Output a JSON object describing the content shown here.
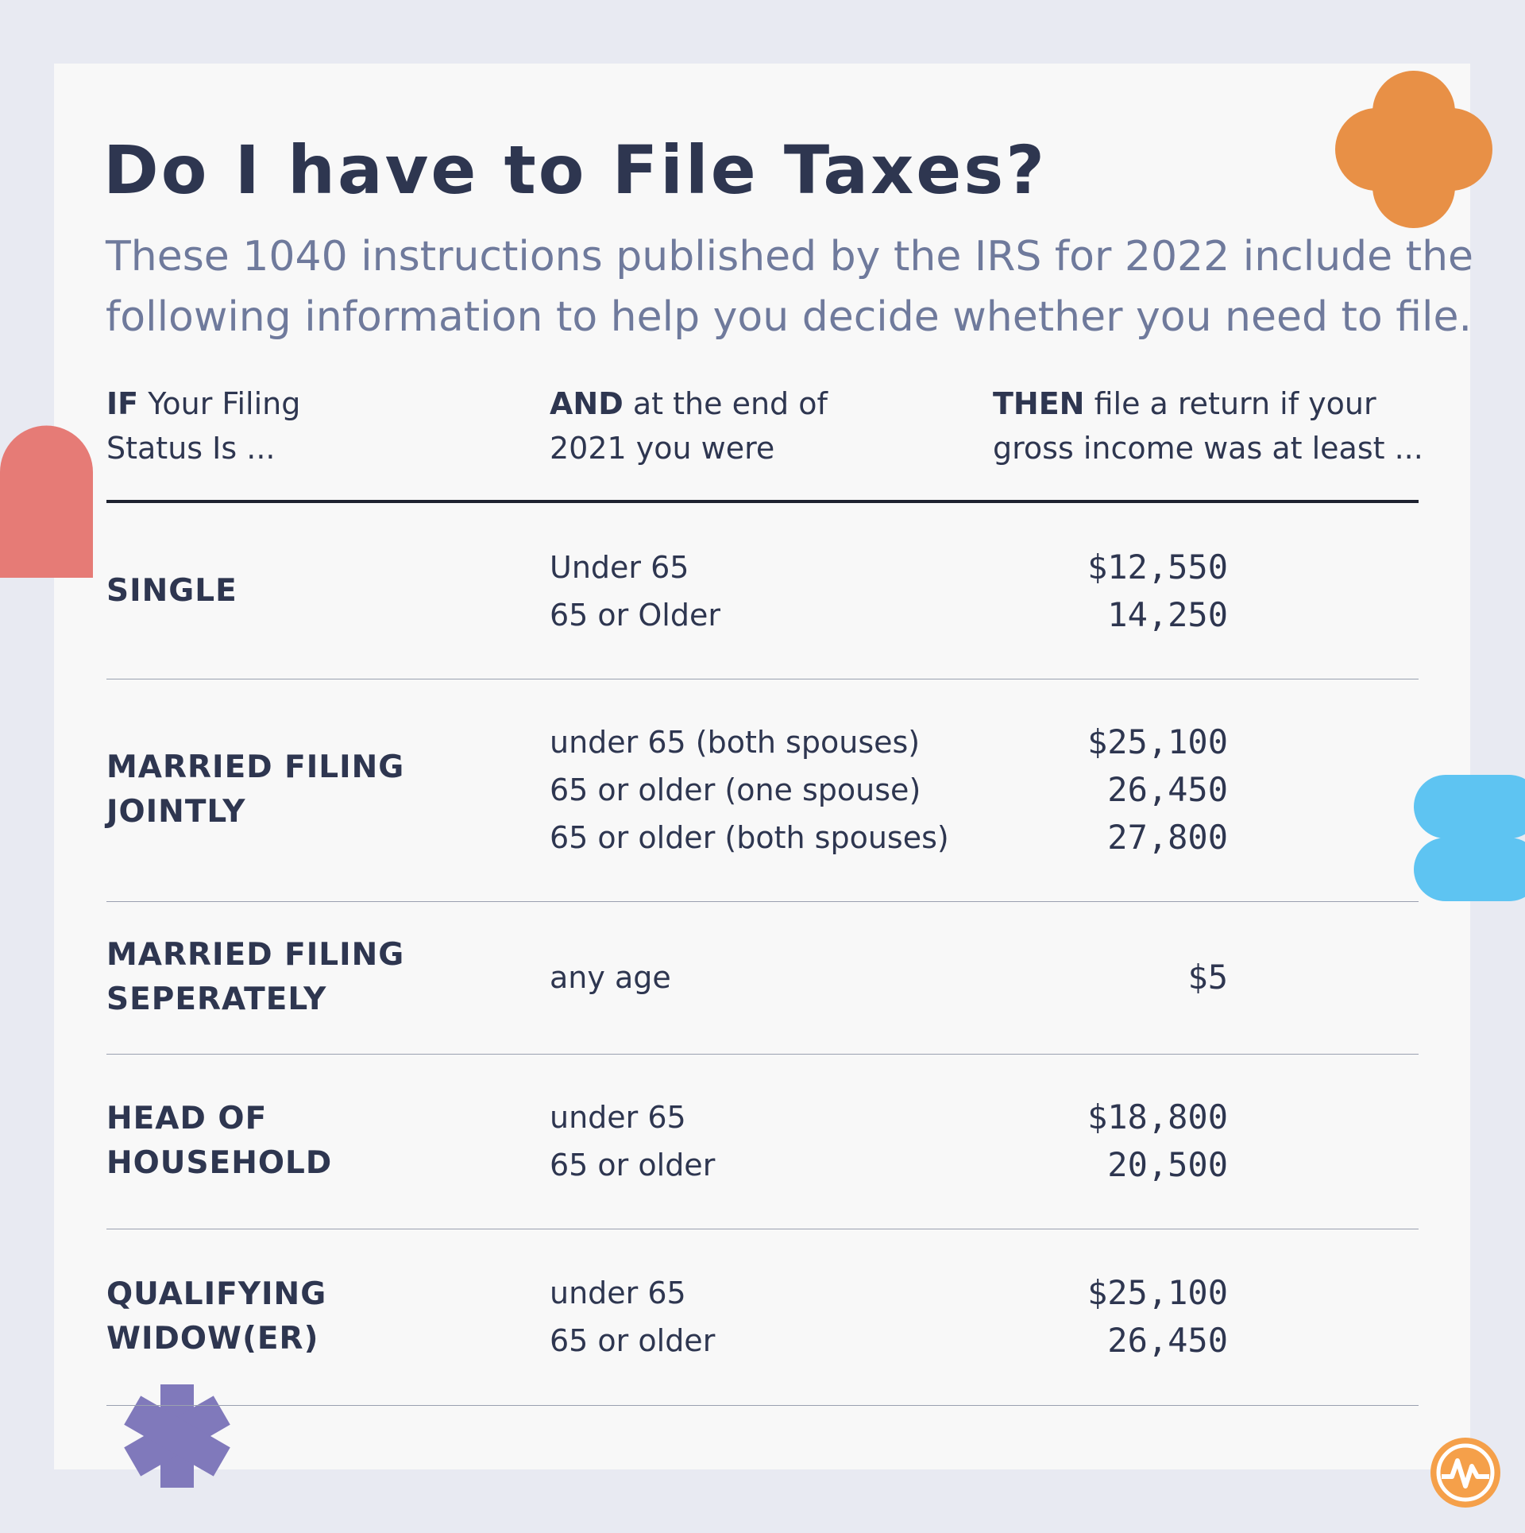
{
  "header": {
    "title": "Do I have to File Taxes?",
    "subtitle_lines": [
      "These 1040 instructions published by the IRS for 2022 include the",
      "following information to help you decide whether you need to file."
    ]
  },
  "table": {
    "columns": [
      {
        "bold": "IF",
        "lines": [
          "Your Filing",
          "Status Is ..."
        ]
      },
      {
        "bold": "AND",
        "lines": [
          "at the end of",
          "2021 you were"
        ]
      },
      {
        "bold": "THEN",
        "lines": [
          "file a return if your",
          "gross income was at least ..."
        ]
      }
    ],
    "rows": [
      {
        "status": [
          "SINGLE"
        ],
        "ages": [
          "Under 65",
          "65 or Older"
        ],
        "amounts": [
          "$12,550",
          "14,250"
        ]
      },
      {
        "status": [
          "MARRIED FILING",
          "JOINTLY"
        ],
        "ages": [
          "under 65 (both spouses)",
          "65 or older (one spouse)",
          "65 or older (both spouses)"
        ],
        "amounts": [
          "$25,100",
          "26,450",
          "27,800"
        ]
      },
      {
        "status": [
          "MARRIED FILING",
          "SEPERATELY"
        ],
        "ages": [
          "any age"
        ],
        "amounts": [
          "$5"
        ]
      },
      {
        "status": [
          "HEAD OF",
          "HOUSEHOLD"
        ],
        "ages": [
          "under 65",
          "65 or older"
        ],
        "amounts": [
          "$18,800",
          "20,500"
        ]
      },
      {
        "status": [
          "QUALIFYING",
          "WIDOW(ER)"
        ],
        "ages": [
          "under 65",
          "65 or older"
        ],
        "amounts": [
          "$25,100",
          "26,450"
        ]
      }
    ]
  }
}
